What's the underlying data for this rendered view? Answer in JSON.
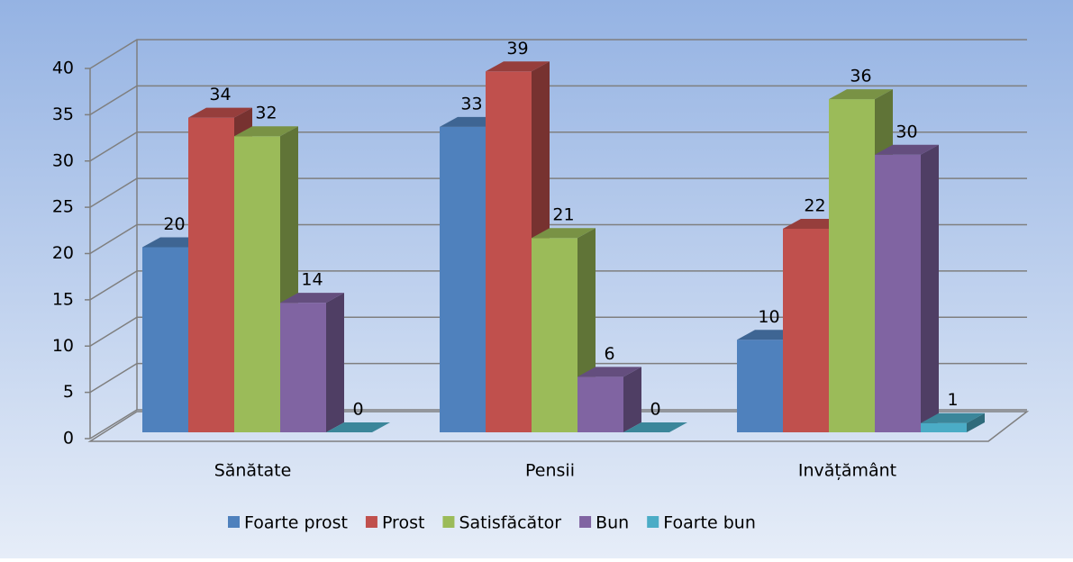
{
  "chart_data": {
    "type": "bar3d",
    "categories": [
      "Sănătate",
      "Pensii",
      "Invățământ"
    ],
    "series": [
      {
        "name": "Foarte prost",
        "color": "#4f81bd",
        "values": [
          20,
          33,
          10
        ]
      },
      {
        "name": "Prost",
        "color": "#c0504d",
        "values": [
          34,
          39,
          22
        ]
      },
      {
        "name": "Satisfăcător",
        "color": "#9bbb59",
        "values": [
          32,
          21,
          36
        ]
      },
      {
        "name": "Bun",
        "color": "#8064a2",
        "values": [
          14,
          6,
          30
        ]
      },
      {
        "name": "Foarte bun",
        "color": "#4bacc6",
        "values": [
          0,
          0,
          1
        ]
      }
    ],
    "ylim": [
      0,
      40
    ],
    "yticks": [
      0,
      5,
      10,
      15,
      20,
      25,
      30,
      35,
      40
    ],
    "grid": true,
    "legend": "bottom"
  }
}
